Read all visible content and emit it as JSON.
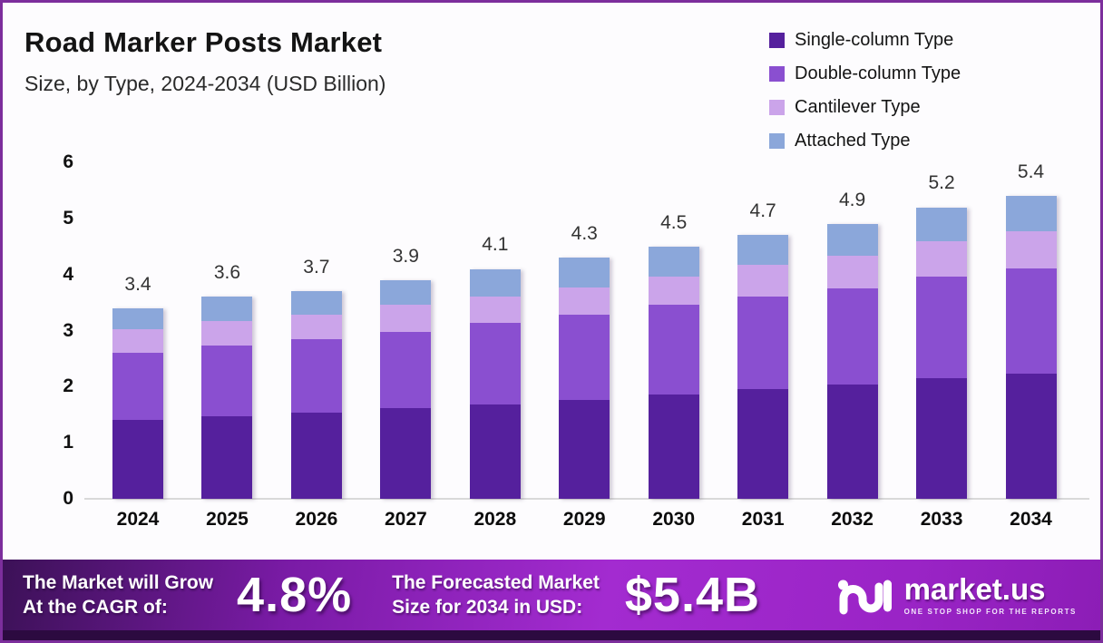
{
  "header": {
    "title": "Road Marker Posts Market",
    "subtitle": "Size, by Type, 2024-2034 (USD Billion)"
  },
  "chart_data": {
    "type": "bar",
    "variant": "stacked",
    "title": "Road Marker Posts Market",
    "subtitle": "Size, by Type, 2024-2034 (USD Billion)",
    "categories": [
      "2024",
      "2025",
      "2026",
      "2027",
      "2028",
      "2029",
      "2030",
      "2031",
      "2032",
      "2033",
      "2034"
    ],
    "series": [
      {
        "name": "Single-column Type",
        "color": "#55209d",
        "values": [
          1.4,
          1.47,
          1.53,
          1.62,
          1.69,
          1.77,
          1.86,
          1.95,
          2.04,
          2.15,
          2.24
        ]
      },
      {
        "name": "Double-column Type",
        "color": "#8a4fd0",
        "values": [
          1.2,
          1.26,
          1.31,
          1.35,
          1.44,
          1.52,
          1.6,
          1.66,
          1.72,
          1.82,
          1.87
        ]
      },
      {
        "name": "Cantilever Type",
        "color": "#cba4ea",
        "values": [
          0.42,
          0.44,
          0.45,
          0.49,
          0.48,
          0.48,
          0.5,
          0.57,
          0.58,
          0.62,
          0.66
        ]
      },
      {
        "name": "Attached Type",
        "color": "#8ba7da",
        "values": [
          0.38,
          0.43,
          0.41,
          0.44,
          0.49,
          0.53,
          0.54,
          0.52,
          0.56,
          0.61,
          0.63
        ]
      }
    ],
    "totals": [
      3.4,
      3.6,
      3.7,
      3.9,
      4.1,
      4.3,
      4.5,
      4.7,
      4.9,
      5.2,
      5.4
    ],
    "ylabel": "",
    "xlabel": "",
    "ylim": [
      0,
      6
    ],
    "yticks": [
      0,
      1,
      2,
      3,
      4,
      5,
      6
    ],
    "grid": false,
    "legend_position": "top-right",
    "total_labels_shown": true
  },
  "banner": {
    "cagr_label_line1": "The Market will Grow",
    "cagr_label_line2": "At the CAGR of:",
    "cagr_value": "4.8%",
    "forecast_label_line1": "The Forecasted Market",
    "forecast_label_line2": "Size for 2034 in USD:",
    "forecast_value": "$5.4B",
    "brand_name": "market.us",
    "brand_tagline": "ONE STOP SHOP FOR THE REPORTS"
  },
  "colors": {
    "frame_border": "#7c2e9c",
    "background": "#fdfcfe",
    "axis_line": "#d9d9d9",
    "banner_gradient_start": "#3c1157",
    "banner_gradient_mid": "#a32bd0",
    "banner_gradient_end": "#8c1db6",
    "bottom_strip": "#2c0a40"
  }
}
